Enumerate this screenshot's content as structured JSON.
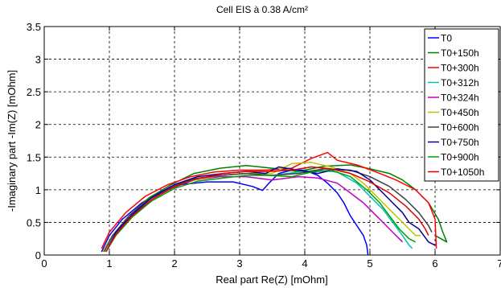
{
  "chart_data": {
    "type": "line",
    "title": "Cell EIS à 0.38 A/cm²",
    "xlabel": "Real part Re(Z) [mOhm]",
    "ylabel": "-Imaginary part -Im(Z) [mOhm]",
    "xlim": [
      0,
      7
    ],
    "ylim": [
      0,
      3.5
    ],
    "xticks": [
      "0",
      "1",
      "2",
      "3",
      "4",
      "5",
      "6",
      "7"
    ],
    "yticks": [
      "0",
      "0.5",
      "1",
      "1.5",
      "2",
      "2.5",
      "3",
      "3.5"
    ],
    "grid": true,
    "legend_position": "top-right",
    "series": [
      {
        "name": "T0",
        "color": "#0000ff",
        "x": [
          0.88,
          1.0,
          1.2,
          1.5,
          1.8,
          2.1,
          2.5,
          2.9,
          3.2,
          3.35,
          3.45,
          3.6,
          3.8,
          4.0,
          4.2,
          4.35,
          4.5,
          4.6,
          4.7,
          4.8,
          4.9,
          4.95,
          4.97
        ],
        "y": [
          0.05,
          0.3,
          0.55,
          0.8,
          0.98,
          1.08,
          1.12,
          1.12,
          1.05,
          0.99,
          1.1,
          1.25,
          1.3,
          1.3,
          1.22,
          1.1,
          0.95,
          0.8,
          0.6,
          0.45,
          0.3,
          0.15,
          0.0
        ]
      },
      {
        "name": "T0+150h",
        "color": "#008000",
        "x": [
          0.9,
          1.05,
          1.3,
          1.6,
          1.95,
          2.3,
          2.7,
          3.1,
          3.5,
          3.9,
          4.3,
          4.7,
          5.0,
          5.3,
          5.5,
          5.7,
          5.9,
          6.05,
          6.12,
          6.18,
          6.0
        ],
        "y": [
          0.05,
          0.3,
          0.6,
          0.87,
          1.08,
          1.25,
          1.33,
          1.37,
          1.33,
          1.28,
          1.36,
          1.38,
          1.32,
          1.25,
          1.15,
          1.0,
          0.8,
          0.55,
          0.35,
          0.2,
          0.3
        ]
      },
      {
        "name": "T0+300h",
        "color": "#ff0000",
        "x": [
          0.88,
          1.0,
          1.25,
          1.55,
          1.9,
          2.25,
          2.6,
          3.0,
          3.4,
          3.8,
          4.1,
          4.35,
          4.5,
          4.8,
          5.1,
          5.4,
          5.7,
          5.9,
          6.0,
          6.02
        ],
        "y": [
          0.1,
          0.35,
          0.65,
          0.9,
          1.08,
          1.2,
          1.27,
          1.3,
          1.3,
          1.33,
          1.48,
          1.57,
          1.45,
          1.38,
          1.27,
          1.15,
          1.0,
          0.8,
          0.55,
          0.1
        ]
      },
      {
        "name": "T0+312h",
        "color": "#00c0c0",
        "x": [
          0.92,
          1.05,
          1.3,
          1.6,
          1.95,
          2.3,
          2.7,
          3.1,
          3.5,
          3.9,
          4.2,
          4.5,
          4.8,
          5.0,
          5.2,
          5.35,
          5.5,
          5.6,
          5.65
        ],
        "y": [
          0.05,
          0.3,
          0.6,
          0.85,
          1.05,
          1.17,
          1.22,
          1.25,
          1.22,
          1.27,
          1.3,
          1.27,
          1.1,
          0.9,
          0.7,
          0.5,
          0.3,
          0.15,
          0.1
        ]
      },
      {
        "name": "T0+324h",
        "color": "#bf00bf",
        "x": [
          0.9,
          1.05,
          1.3,
          1.6,
          1.95,
          2.3,
          2.7,
          3.1,
          3.5,
          3.9,
          4.2,
          4.5,
          4.7,
          4.9,
          5.05,
          5.2,
          5.35,
          5.45,
          5.5
        ],
        "y": [
          0.05,
          0.3,
          0.6,
          0.85,
          1.02,
          1.15,
          1.2,
          1.2,
          1.15,
          1.2,
          1.18,
          1.1,
          0.95,
          0.8,
          0.65,
          0.5,
          0.35,
          0.25,
          0.2
        ]
      },
      {
        "name": "T0+450h",
        "color": "#c0c000",
        "x": [
          0.9,
          1.05,
          1.3,
          1.6,
          1.95,
          2.3,
          2.7,
          3.1,
          3.5,
          3.8,
          4.1,
          4.4,
          4.7,
          4.9,
          5.1,
          5.3,
          5.5,
          5.7,
          5.78
        ],
        "y": [
          0.05,
          0.3,
          0.6,
          0.85,
          1.05,
          1.15,
          1.22,
          1.25,
          1.25,
          1.4,
          1.42,
          1.35,
          1.25,
          1.1,
          0.9,
          0.7,
          0.5,
          0.3,
          0.3
        ]
      },
      {
        "name": "T0+600h",
        "color": "#404040",
        "x": [
          0.92,
          1.05,
          1.3,
          1.6,
          1.95,
          2.3,
          2.7,
          3.1,
          3.5,
          3.9,
          4.3,
          4.7,
          5.0,
          5.3,
          5.55,
          5.75,
          5.9,
          5.95
        ],
        "y": [
          0.05,
          0.3,
          0.6,
          0.85,
          1.05,
          1.17,
          1.22,
          1.25,
          1.22,
          1.25,
          1.32,
          1.3,
          1.2,
          1.05,
          0.85,
          0.65,
          0.45,
          0.35
        ]
      },
      {
        "name": "T0+750h",
        "color": "#0000a0",
        "x": [
          0.95,
          1.1,
          1.35,
          1.65,
          2.0,
          2.35,
          2.75,
          3.1,
          3.4,
          3.6,
          3.9,
          4.2,
          4.5,
          4.8,
          5.0,
          5.2,
          5.35,
          5.5,
          5.6,
          5.75,
          5.9,
          6.0
        ],
        "y": [
          0.05,
          0.35,
          0.62,
          0.88,
          1.08,
          1.2,
          1.25,
          1.28,
          1.25,
          1.35,
          1.3,
          1.25,
          1.32,
          1.28,
          1.15,
          0.95,
          0.8,
          0.65,
          0.5,
          0.4,
          0.2,
          0.15
        ]
      },
      {
        "name": "T0+900h",
        "color": "#00a000",
        "x": [
          0.95,
          1.1,
          1.35,
          1.65,
          2.0,
          2.35,
          2.75,
          3.1,
          3.45,
          3.8,
          4.1,
          4.4,
          4.7,
          4.95,
          5.15,
          5.3,
          5.45,
          5.6,
          5.7
        ],
        "y": [
          0.05,
          0.3,
          0.58,
          0.83,
          1.02,
          1.13,
          1.18,
          1.22,
          1.22,
          1.2,
          1.27,
          1.3,
          1.2,
          1.0,
          0.8,
          0.6,
          0.4,
          0.25,
          0.2
        ]
      },
      {
        "name": "T0+1050h",
        "color": "#e00000",
        "x": [
          0.95,
          1.1,
          1.35,
          1.65,
          2.0,
          2.35,
          2.75,
          3.1,
          3.45,
          3.8,
          4.1,
          4.4,
          4.7,
          5.0,
          5.3,
          5.55,
          5.75,
          5.85,
          5.9
        ],
        "y": [
          0.05,
          0.32,
          0.6,
          0.85,
          1.05,
          1.17,
          1.25,
          1.28,
          1.28,
          1.3,
          1.35,
          1.32,
          1.25,
          1.12,
          0.95,
          0.75,
          0.55,
          0.4,
          0.3
        ]
      }
    ]
  }
}
